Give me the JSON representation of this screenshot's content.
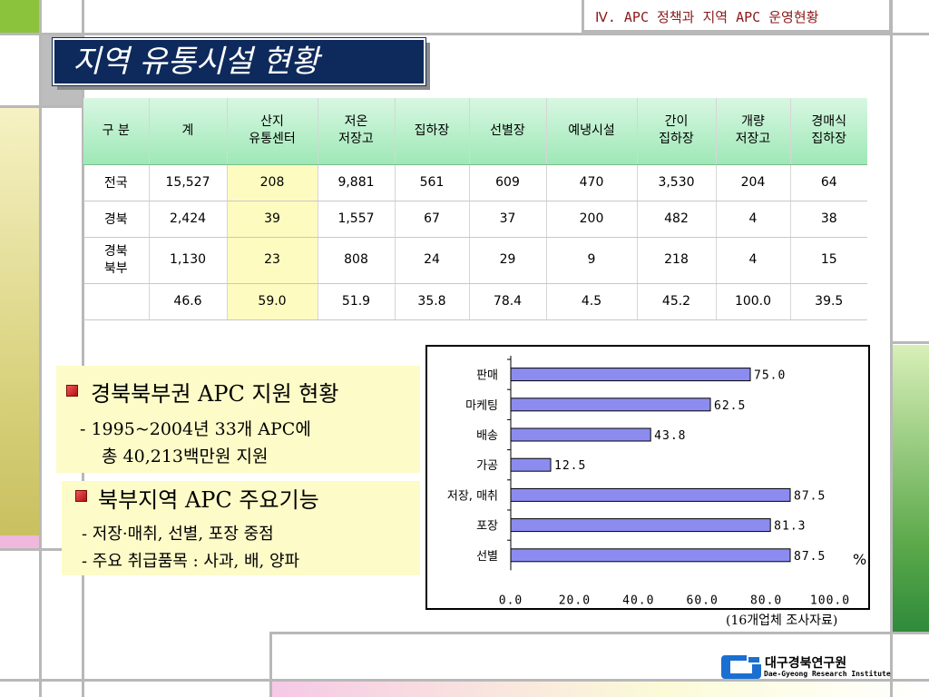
{
  "header": {
    "section": "Ⅳ. APC 정책과 지역 APC 운영현황"
  },
  "title": "지역 유통시설 현황",
  "table": {
    "columns": [
      "구 분",
      "계",
      "산지\n유통센터",
      "저온\n저장고",
      "집하장",
      "선별장",
      "예냉시설",
      "간이\n집하장",
      "개량\n저장고",
      "경매식\n집하장"
    ],
    "rows": [
      [
        "전국",
        "15,527",
        "208",
        "9,881",
        "561",
        "609",
        "470",
        "3,530",
        "204",
        "64"
      ],
      [
        "경북",
        "2,424",
        "39",
        "1,557",
        "67",
        "37",
        "200",
        "482",
        "4",
        "38"
      ],
      [
        "경북\n북부",
        "1,130",
        "23",
        "808",
        "24",
        "29",
        "9",
        "218",
        "4",
        "15"
      ],
      [
        "",
        "46.6",
        "59.0",
        "51.9",
        "35.8",
        "78.4",
        "4.5",
        "45.2",
        "100.0",
        "39.5"
      ]
    ]
  },
  "left_panel": {
    "heading1": "경북북부권 APC 지원 현황",
    "line1": "- 1995~2004년 33개 APC에",
    "line2": "총 40,213백만원 지원",
    "heading2": "북부지역 APC 주요기능",
    "line3": "- 저장·매취, 선별, 포장 중점",
    "line4": "- 주요 취급품목 : 사과, 배, 양파"
  },
  "chart_data": {
    "type": "bar",
    "orientation": "horizontal",
    "categories": [
      "판매",
      "마케팅",
      "배송",
      "가공",
      "저장, 매취",
      "포장",
      "선별"
    ],
    "values": [
      75.0,
      62.5,
      43.8,
      12.5,
      87.5,
      81.3,
      87.5
    ],
    "value_labels": [
      "75.0",
      "62.5",
      "43.8",
      "12.5",
      "87.5",
      "81.3",
      "87.5"
    ],
    "xlim": [
      0,
      100
    ],
    "xticks": [
      "0.0",
      "20.0",
      "40.0",
      "60.0",
      "80.0",
      "100.0"
    ],
    "unit": "%",
    "bar_color": "#8c8cf0"
  },
  "source_note": "(16개업체 조사자료)",
  "logo": {
    "korean": "대구경북연구원",
    "english": "Dae-Gyeong Research Institute"
  },
  "colors": {
    "title_bg": "#0e2a5c",
    "header_text": "#8b1a1a",
    "table_header": "#9ee8b6",
    "highlight": "#fdfbc0",
    "panel": "#fdfbc8"
  }
}
